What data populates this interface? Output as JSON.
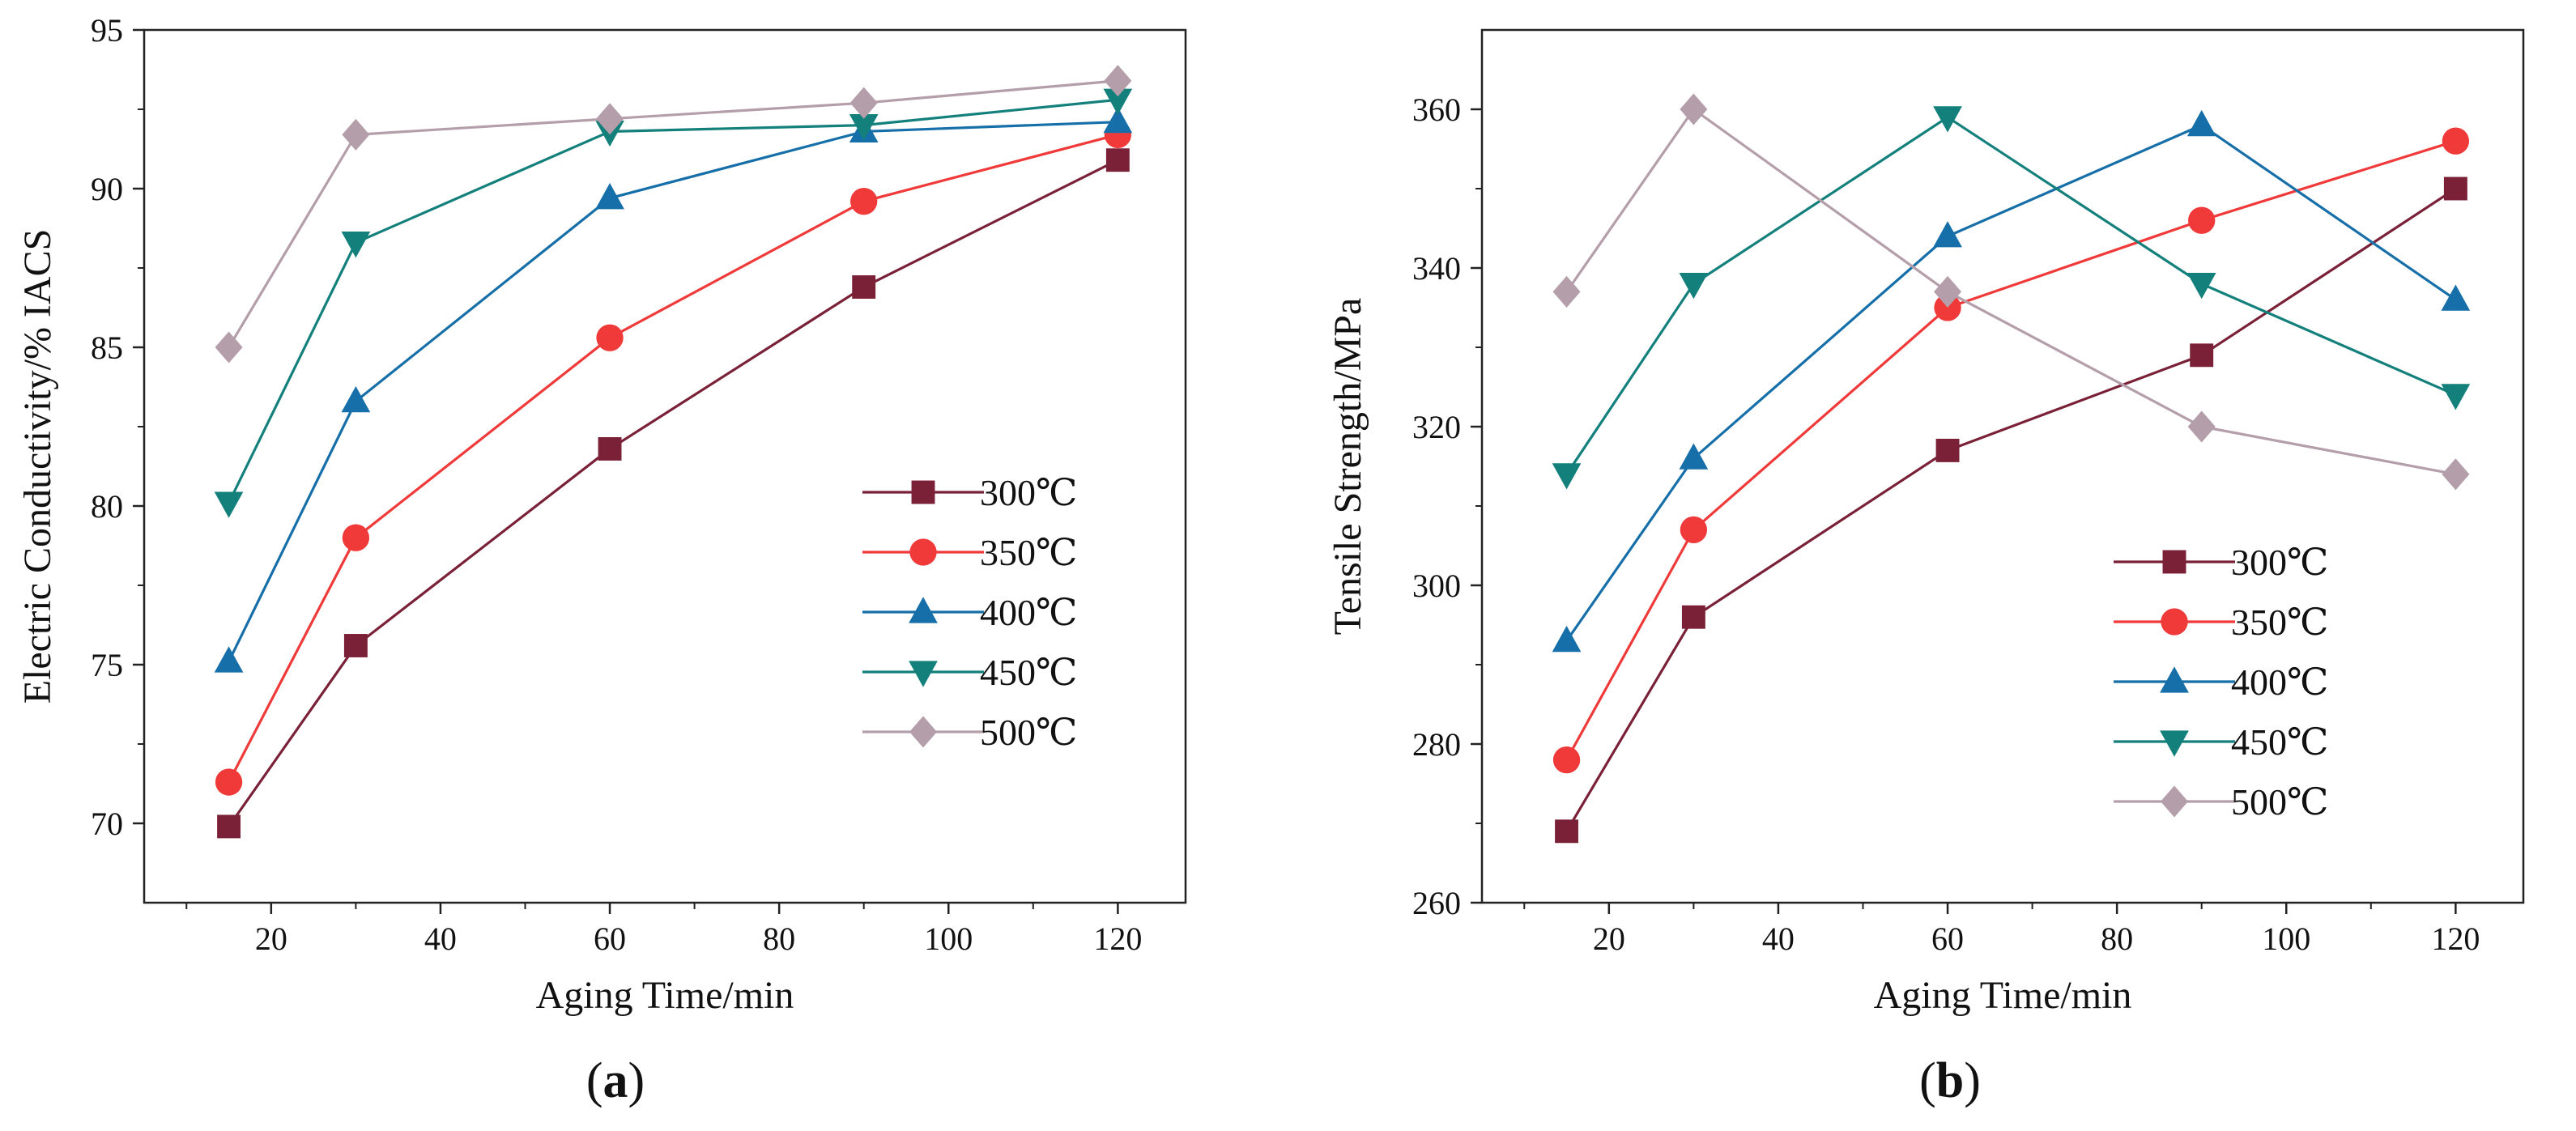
{
  "chart_data": [
    {
      "type": "line",
      "panel_label": {
        "open": "(",
        "letter": "a",
        "close": ")"
      },
      "xlabel": "Aging Time/min",
      "ylabel": "Electric Conductivity/% IACS",
      "xlim": [
        5,
        128
      ],
      "ylim": [
        67.5,
        95
      ],
      "x_ticks": [
        "20",
        "40",
        "60",
        "80",
        "100",
        "120"
      ],
      "y_ticks": [
        "70",
        "75",
        "80",
        "85",
        "90",
        "95"
      ],
      "x": [
        15,
        30,
        60,
        90,
        120
      ],
      "legend_position": "center-right",
      "series": [
        {
          "name": "300℃",
          "color": "#7a2138",
          "marker": "square",
          "values": [
            69.9,
            75.6,
            81.8,
            86.9,
            90.9
          ]
        },
        {
          "name": "350℃",
          "color": "#f03a3a",
          "marker": "circle",
          "values": [
            71.3,
            79.0,
            85.3,
            89.6,
            91.7
          ]
        },
        {
          "name": "400℃",
          "color": "#166fa8",
          "marker": "triangle-up",
          "values": [
            75.1,
            83.3,
            89.7,
            91.8,
            92.1
          ]
        },
        {
          "name": "450℃",
          "color": "#14807c",
          "marker": "triangle-down",
          "values": [
            80.1,
            88.3,
            91.8,
            92.0,
            92.8
          ]
        },
        {
          "name": "500℃",
          "color": "#b49ea9",
          "marker": "diamond",
          "values": [
            85.0,
            91.7,
            92.2,
            92.7,
            93.4
          ]
        }
      ]
    },
    {
      "type": "line",
      "panel_label": {
        "open": "(",
        "letter": "b",
        "close": ")"
      },
      "xlabel": "Aging Time/min",
      "ylabel": "Tensile Strength/MPa",
      "xlim": [
        5,
        128
      ],
      "ylim": [
        260,
        370
      ],
      "x_ticks": [
        "20",
        "40",
        "60",
        "80",
        "100",
        "120"
      ],
      "y_ticks": [
        "260",
        "280",
        "300",
        "320",
        "340",
        "360"
      ],
      "x": [
        15,
        30,
        60,
        90,
        120
      ],
      "legend_position": "lower-right",
      "series": [
        {
          "name": "300℃",
          "color": "#7a2138",
          "marker": "square",
          "values": [
            269,
            296,
            317,
            329,
            350
          ]
        },
        {
          "name": "350℃",
          "color": "#f03a3a",
          "marker": "circle",
          "values": [
            278,
            307,
            335,
            346,
            356
          ]
        },
        {
          "name": "400℃",
          "color": "#166fa8",
          "marker": "triangle-up",
          "values": [
            293,
            316,
            344,
            358,
            336
          ]
        },
        {
          "name": "450℃",
          "color": "#14807c",
          "marker": "triangle-down",
          "values": [
            314,
            338,
            359,
            338,
            324
          ]
        },
        {
          "name": "500℃",
          "color": "#b49ea9",
          "marker": "diamond",
          "values": [
            337,
            360,
            337,
            320,
            314
          ]
        }
      ]
    }
  ]
}
